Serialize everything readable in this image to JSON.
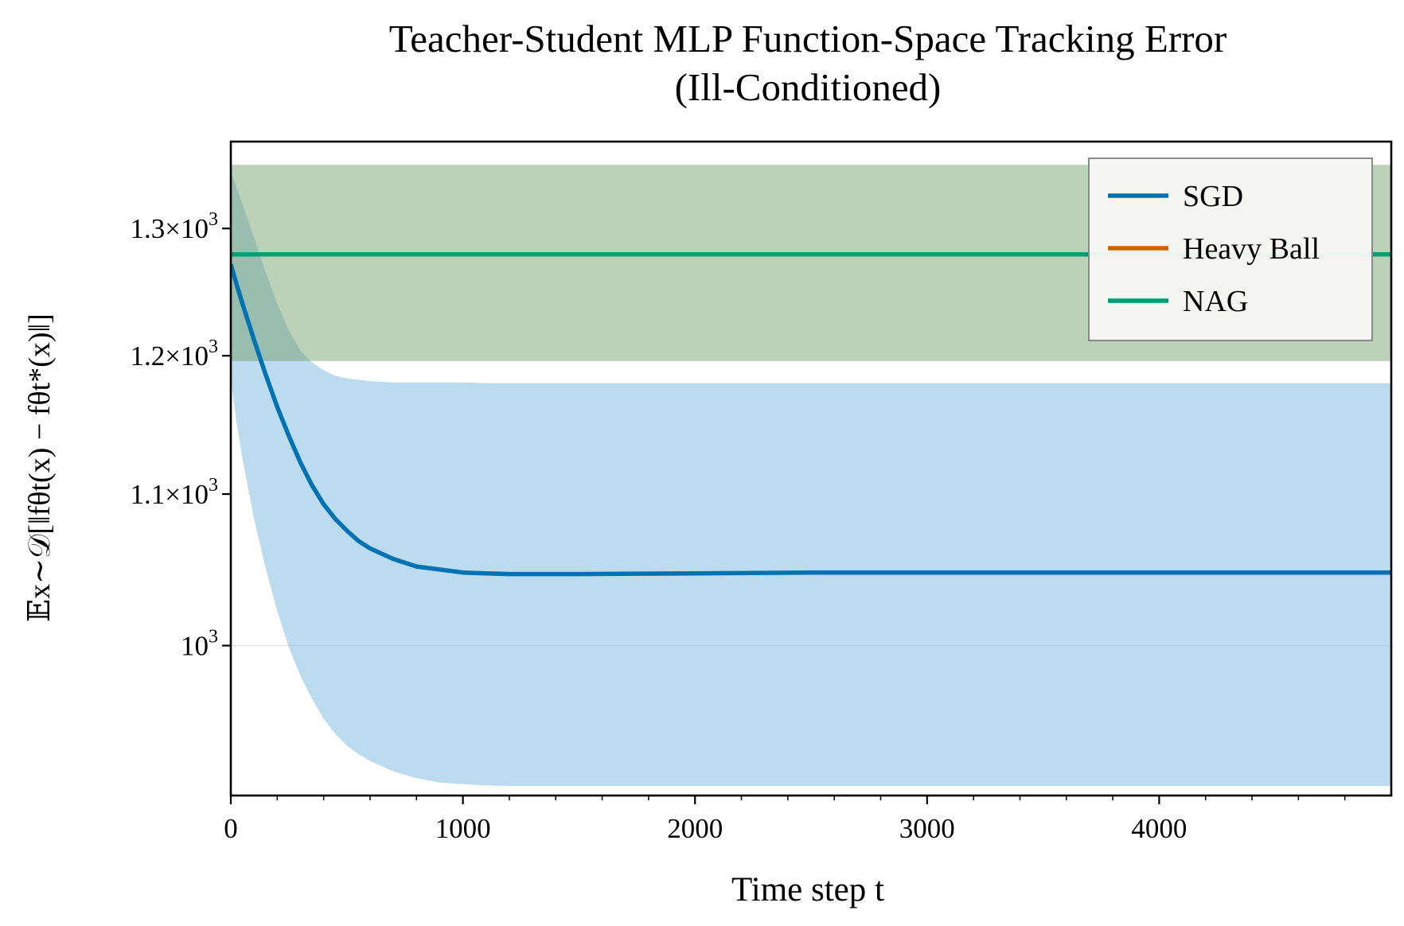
{
  "chart_data": {
    "type": "line",
    "title_line1": "Teacher-Student MLP Function-Space Tracking Error",
    "title_line2": "(Ill-Conditioned)",
    "xlabel": "Time step t",
    "ylabel": "𝔼x∼𝒟[‖fθt(x) − fθt*(x)‖]",
    "xlim": [
      0,
      5000
    ],
    "ylim": [
      910,
      1373
    ],
    "yscale": "log",
    "x_ticks": [
      0,
      1000,
      2000,
      3000,
      4000
    ],
    "x_tick_labels": [
      "0",
      "1000",
      "2000",
      "3000",
      "4000"
    ],
    "y_ticks": [
      {
        "value": 1000,
        "mantissa": "",
        "exponent": "3"
      },
      {
        "value": 1100,
        "mantissa": "1.1",
        "exponent": "3"
      },
      {
        "value": 1200,
        "mantissa": "1.2",
        "exponent": "3"
      },
      {
        "value": 1300,
        "mantissa": "1.3",
        "exponent": "3"
      }
    ],
    "x": [
      0,
      25,
      50,
      100,
      150,
      200,
      250,
      300,
      350,
      400,
      450,
      500,
      550,
      600,
      700,
      800,
      900,
      1000,
      1100,
      1200,
      1300,
      1500,
      2000,
      2500,
      3000,
      3500,
      4000,
      4500,
      5000
    ],
    "series": [
      {
        "name": "SGD",
        "color": "#0072b2",
        "values": [
          1271,
          1255,
          1240,
          1212,
          1186,
          1162,
          1141,
          1122,
          1106,
          1093,
          1083,
          1075,
          1068,
          1063,
          1056,
          1051,
          1049,
          1047,
          1046.5,
          1046,
          1046,
          1046,
          1046.5,
          1047,
          1047,
          1047,
          1047,
          1047,
          1047
        ],
        "lower": [
          1182,
          1150,
          1125,
          1083,
          1050,
          1022,
          999,
          981,
          967,
          955,
          946,
          939,
          934,
          930,
          924,
          920,
          917.5,
          916.5,
          915.8,
          915.5,
          915.5,
          915.5,
          915.5,
          915.5,
          915.5,
          915.5,
          915.5,
          915.5,
          915.5
        ],
        "upper": [
          1348,
          1334,
          1320,
          1292,
          1265,
          1240,
          1219,
          1204,
          1195,
          1189,
          1185,
          1183,
          1182,
          1181,
          1180,
          1180,
          1180,
          1180,
          1179.5,
          1179.5,
          1179.5,
          1179.5,
          1179.5,
          1179.5,
          1179.5,
          1179.5,
          1179.5,
          1179.5,
          1179.5
        ]
      },
      {
        "name": "Heavy Ball",
        "color": "#d55e00",
        "values": [
          1279,
          1279,
          1279,
          1279,
          1279,
          1279,
          1279,
          1279,
          1279,
          1279,
          1279,
          1279,
          1279,
          1279,
          1279,
          1279,
          1279,
          1279,
          1279,
          1279,
          1279,
          1279,
          1279,
          1279,
          1279,
          1279,
          1279,
          1279,
          1279
        ],
        "lower": [
          1196,
          1196,
          1196,
          1196,
          1196,
          1196,
          1196,
          1196,
          1196,
          1196,
          1196,
          1196,
          1196,
          1196,
          1196,
          1196,
          1196,
          1196,
          1196,
          1196,
          1196,
          1196,
          1196,
          1196,
          1196,
          1196,
          1196,
          1196,
          1196
        ],
        "upper": [
          1353,
          1353,
          1353,
          1353,
          1353,
          1353,
          1353,
          1353,
          1353,
          1353,
          1353,
          1353,
          1353,
          1353,
          1353,
          1353,
          1353,
          1353,
          1353,
          1353,
          1353,
          1353,
          1353,
          1353,
          1353,
          1353,
          1353,
          1353,
          1353
        ]
      },
      {
        "name": "NAG",
        "color": "#009e73",
        "values": [
          1279,
          1279,
          1279,
          1279,
          1279,
          1279,
          1279,
          1279,
          1279,
          1279,
          1279,
          1279,
          1279,
          1279,
          1279,
          1279,
          1279,
          1279,
          1279,
          1279,
          1279,
          1279,
          1279,
          1279,
          1279,
          1279,
          1279,
          1279,
          1279
        ],
        "lower": [
          1196,
          1196,
          1196,
          1196,
          1196,
          1196,
          1196,
          1196,
          1196,
          1196,
          1196,
          1196,
          1196,
          1196,
          1196,
          1196,
          1196,
          1196,
          1196,
          1196,
          1196,
          1196,
          1196,
          1196,
          1196,
          1196,
          1196,
          1196,
          1196
        ],
        "upper": [
          1353,
          1353,
          1353,
          1353,
          1353,
          1353,
          1353,
          1353,
          1353,
          1353,
          1353,
          1353,
          1353,
          1353,
          1353,
          1353,
          1353,
          1353,
          1353,
          1353,
          1353,
          1353,
          1353,
          1353,
          1353,
          1353,
          1353,
          1353,
          1353
        ]
      }
    ],
    "grid": false,
    "legend": "top-right"
  }
}
